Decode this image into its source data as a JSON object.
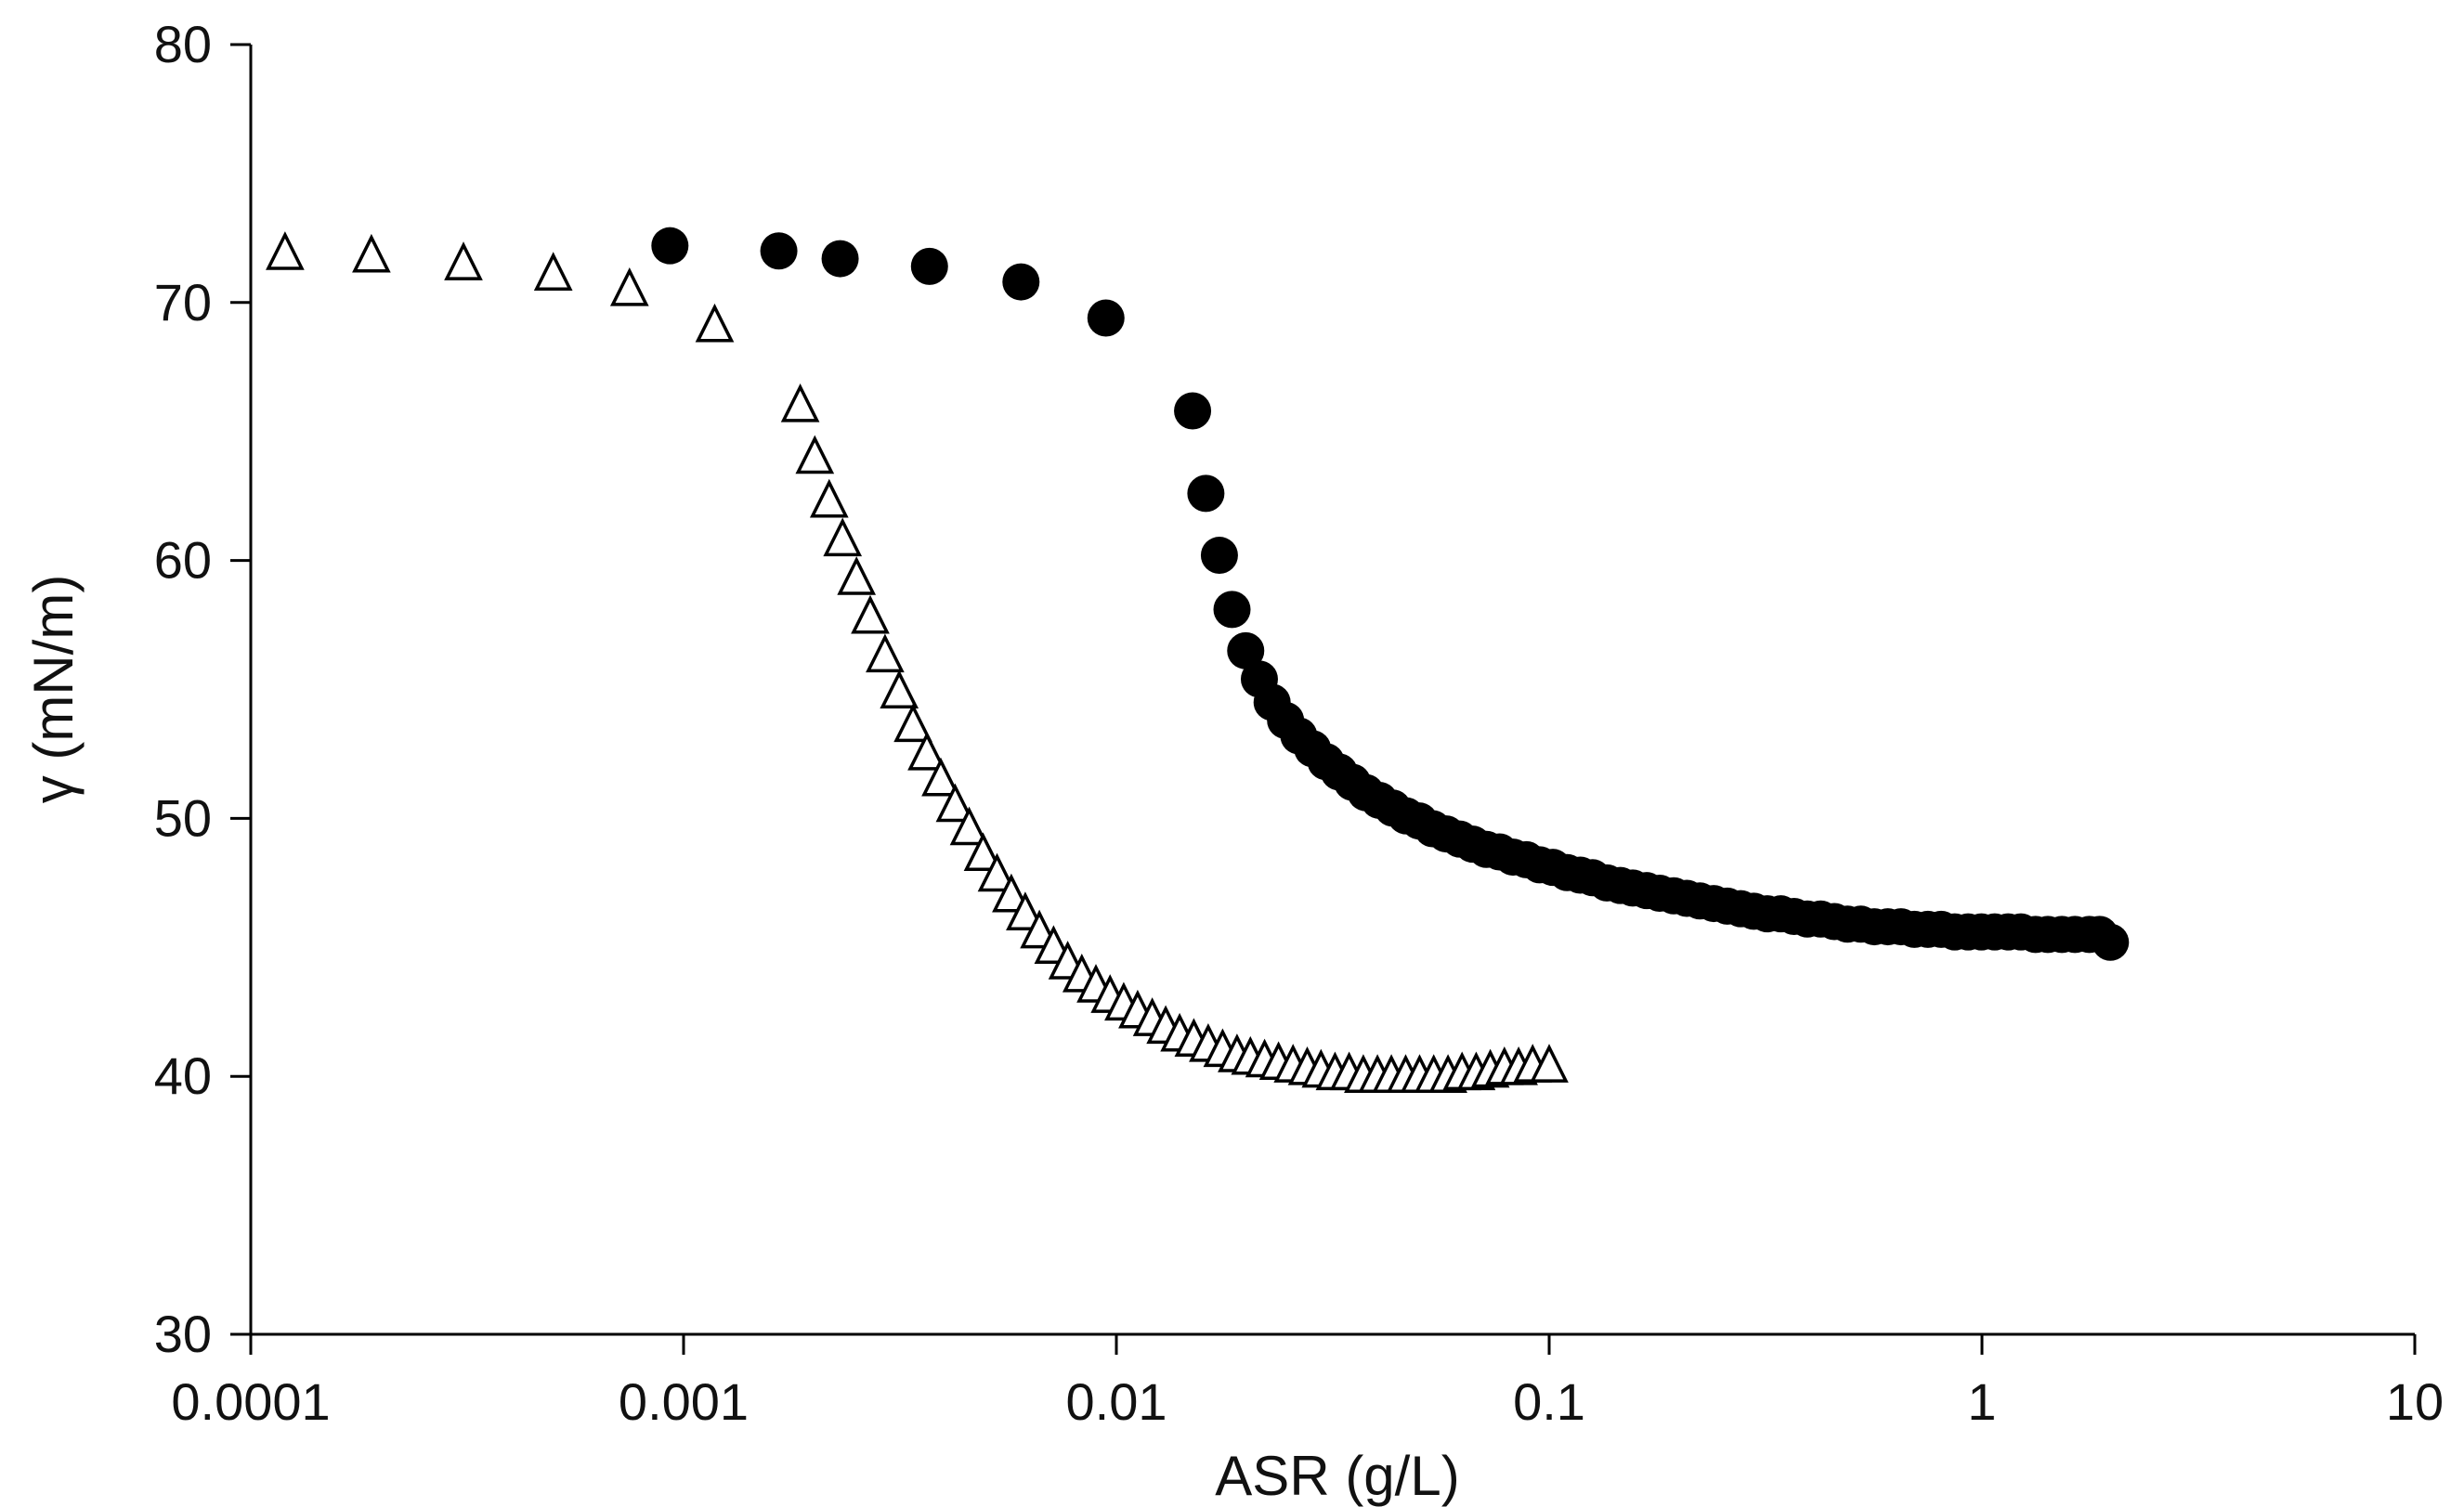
{
  "chart_data": {
    "type": "scatter",
    "title": "",
    "xlabel": "ASR (g/L)",
    "ylabel": "γ (mN/m)",
    "x_scale": "log",
    "xlim": [
      0.0001,
      10
    ],
    "ylim": [
      30,
      80
    ],
    "grid": false,
    "legend": "none",
    "x_ticks": [
      0.0001,
      0.001,
      0.01,
      0.1,
      1,
      10
    ],
    "x_tick_labels": [
      "0.0001",
      "0.001",
      "0.01",
      "0.1",
      "1",
      "10"
    ],
    "y_ticks": [
      30,
      40,
      50,
      60,
      70,
      80
    ],
    "y_tick_labels": [
      "30",
      "40",
      "50",
      "60",
      "70",
      "80"
    ],
    "series": [
      {
        "name": "open triangles",
        "marker": "triangle-open",
        "color": "#000000",
        "points": [
          [
            0.00012,
            71.9
          ],
          [
            0.00019,
            71.8
          ],
          [
            0.00031,
            71.5
          ],
          [
            0.0005,
            71.1
          ],
          [
            0.00075,
            70.5
          ],
          [
            0.00118,
            69.1
          ],
          [
            0.00186,
            66.0
          ],
          [
            0.00201,
            64.0
          ],
          [
            0.00217,
            62.3
          ],
          [
            0.00233,
            60.8
          ],
          [
            0.00251,
            59.3
          ],
          [
            0.0027,
            57.8
          ],
          [
            0.00292,
            56.3
          ],
          [
            0.00315,
            54.9
          ],
          [
            0.00339,
            53.6
          ],
          [
            0.00365,
            52.5
          ],
          [
            0.00393,
            51.5
          ],
          [
            0.00424,
            50.5
          ],
          [
            0.00457,
            49.6
          ],
          [
            0.00492,
            48.6
          ],
          [
            0.0053,
            47.8
          ],
          [
            0.00572,
            47.0
          ],
          [
            0.00616,
            46.3
          ],
          [
            0.00664,
            45.6
          ],
          [
            0.00716,
            45.0
          ],
          [
            0.00772,
            44.4
          ],
          [
            0.00832,
            43.9
          ],
          [
            0.00897,
            43.5
          ],
          [
            0.00967,
            43.1
          ],
          [
            0.0104,
            42.8
          ],
          [
            0.0112,
            42.5
          ],
          [
            0.0121,
            42.2
          ],
          [
            0.013,
            41.9
          ],
          [
            0.014,
            41.6
          ],
          [
            0.0151,
            41.4
          ],
          [
            0.0163,
            41.2
          ],
          [
            0.0176,
            41.0
          ],
          [
            0.019,
            40.8
          ],
          [
            0.0204,
            40.7
          ],
          [
            0.022,
            40.6
          ],
          [
            0.0237,
            40.5
          ],
          [
            0.0256,
            40.4
          ],
          [
            0.0276,
            40.3
          ],
          [
            0.0297,
            40.2
          ],
          [
            0.032,
            40.1
          ],
          [
            0.0345,
            40.1
          ],
          [
            0.0372,
            40.0
          ],
          [
            0.0401,
            40.0
          ],
          [
            0.0432,
            40.0
          ],
          [
            0.0466,
            40.0
          ],
          [
            0.0502,
            40.0
          ],
          [
            0.0541,
            40.0
          ],
          [
            0.0584,
            40.0
          ],
          [
            0.0629,
            40.1
          ],
          [
            0.0678,
            40.1
          ],
          [
            0.0731,
            40.2
          ],
          [
            0.0788,
            40.3
          ],
          [
            0.085,
            40.3
          ],
          [
            0.0916,
            40.4
          ],
          [
            0.1,
            40.4
          ]
        ]
      },
      {
        "name": "filled circles",
        "marker": "circle-filled",
        "color": "#000000",
        "points": [
          [
            0.00093,
            72.2
          ],
          [
            0.00166,
            72.0
          ],
          [
            0.0023,
            71.7
          ],
          [
            0.0037,
            71.4
          ],
          [
            0.00602,
            70.8
          ],
          [
            0.00946,
            69.4
          ],
          [
            0.015,
            65.8
          ],
          [
            0.0161,
            62.6
          ],
          [
            0.0173,
            60.2
          ],
          [
            0.0185,
            58.1
          ],
          [
            0.0199,
            56.5
          ],
          [
            0.0214,
            55.4
          ],
          [
            0.0229,
            54.5
          ],
          [
            0.0246,
            53.8
          ],
          [
            0.0264,
            53.2
          ],
          [
            0.0284,
            52.7
          ],
          [
            0.0305,
            52.2
          ],
          [
            0.0327,
            51.8
          ],
          [
            0.0351,
            51.4
          ],
          [
            0.0377,
            51.0
          ],
          [
            0.0405,
            50.7
          ],
          [
            0.0435,
            50.4
          ],
          [
            0.0467,
            50.1
          ],
          [
            0.0501,
            49.9
          ],
          [
            0.0538,
            49.6
          ],
          [
            0.0578,
            49.4
          ],
          [
            0.0621,
            49.2
          ],
          [
            0.0666,
            49.0
          ],
          [
            0.0716,
            48.8
          ],
          [
            0.0768,
            48.7
          ],
          [
            0.0825,
            48.5
          ],
          [
            0.0886,
            48.4
          ],
          [
            0.0951,
            48.2
          ],
          [
            0.102,
            48.1
          ],
          [
            0.11,
            47.9
          ],
          [
            0.118,
            47.8
          ],
          [
            0.126,
            47.7
          ],
          [
            0.136,
            47.5
          ],
          [
            0.146,
            47.4
          ],
          [
            0.156,
            47.3
          ],
          [
            0.168,
            47.2
          ],
          [
            0.18,
            47.1
          ],
          [
            0.194,
            47.0
          ],
          [
            0.208,
            46.9
          ],
          [
            0.223,
            46.8
          ],
          [
            0.24,
            46.7
          ],
          [
            0.258,
            46.6
          ],
          [
            0.277,
            46.5
          ],
          [
            0.297,
            46.4
          ],
          [
            0.319,
            46.3
          ],
          [
            0.343,
            46.3
          ],
          [
            0.368,
            46.2
          ],
          [
            0.395,
            46.1
          ],
          [
            0.424,
            46.1
          ],
          [
            0.456,
            46.0
          ],
          [
            0.489,
            45.9
          ],
          [
            0.525,
            45.9
          ],
          [
            0.564,
            45.8
          ],
          [
            0.606,
            45.8
          ],
          [
            0.65,
            45.8
          ],
          [
            0.698,
            45.7
          ],
          [
            0.75,
            45.7
          ],
          [
            0.805,
            45.7
          ],
          [
            0.865,
            45.6
          ],
          [
            0.929,
            45.6
          ],
          [
            0.997,
            45.6
          ],
          [
            1.07,
            45.6
          ],
          [
            1.15,
            45.6
          ],
          [
            1.23,
            45.6
          ],
          [
            1.33,
            45.5
          ],
          [
            1.42,
            45.5
          ],
          [
            1.53,
            45.5
          ],
          [
            1.64,
            45.5
          ],
          [
            1.77,
            45.5
          ],
          [
            1.87,
            45.5
          ],
          [
            1.98,
            45.2
          ]
        ]
      }
    ]
  }
}
